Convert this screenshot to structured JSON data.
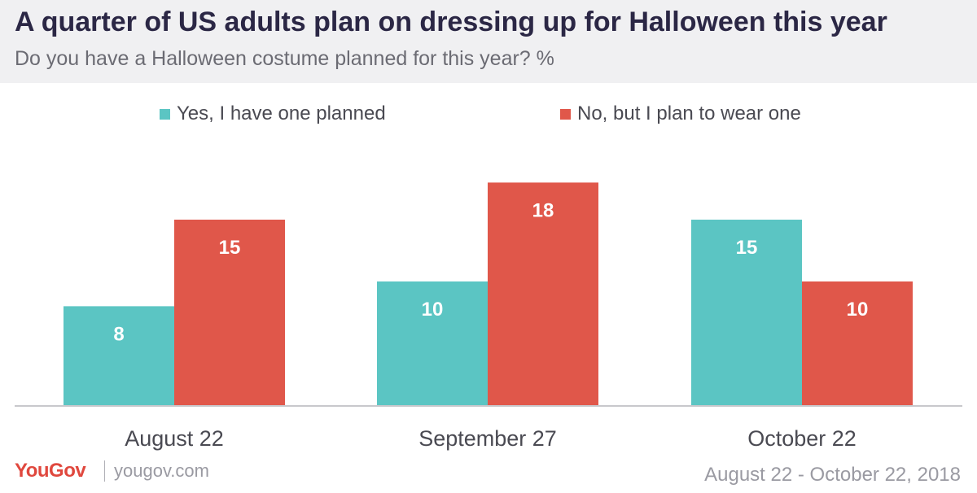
{
  "header": {
    "title": "A quarter of US adults plan on dressing up for Halloween this year",
    "subtitle": "Do you have a Halloween costume planned for this year? %"
  },
  "footer": {
    "logo": "YouGov",
    "site": "yougov.com",
    "date_range": "August 22 - October 22, 2018"
  },
  "chart_data": {
    "type": "bar",
    "categories": [
      "August 22",
      "September 27",
      "October 22"
    ],
    "series": [
      {
        "name": "Yes, I have one planned",
        "color": "#5bc5c3",
        "values": [
          8,
          10,
          15
        ]
      },
      {
        "name": "No, but I plan to wear one",
        "color": "#e0574a",
        "values": [
          15,
          18,
          10
        ]
      }
    ],
    "ylim": [
      0,
      20
    ],
    "grid": false,
    "legend": "top-center",
    "data_labels": true
  }
}
